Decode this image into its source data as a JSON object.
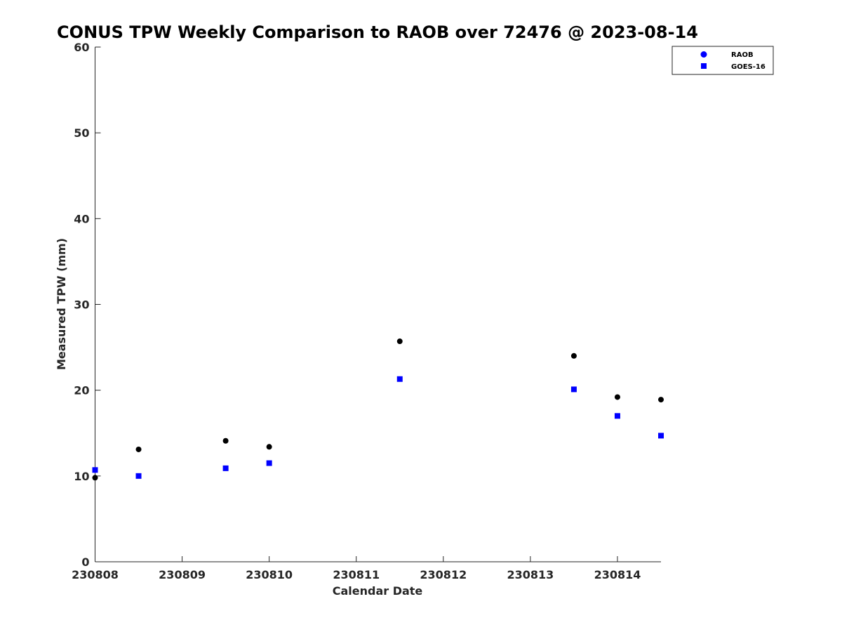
{
  "chart_data": {
    "type": "scatter",
    "title": "CONUS TPW Weekly Comparison to RAOB over 72476 @ 2023-08-14",
    "xlabel": "Calendar Date",
    "ylabel": "Measured TPW (mm)",
    "xlim": [
      "230808",
      "230814.5"
    ],
    "ylim": [
      0,
      60
    ],
    "x_ticks": [
      "230808",
      "230809",
      "230810",
      "230811",
      "230812",
      "230813",
      "230814"
    ],
    "y_ticks": [
      0,
      10,
      20,
      30,
      40,
      50,
      60
    ],
    "grid": false,
    "legend_position": "top-right",
    "series": [
      {
        "name": "RAOB",
        "marker": "circle",
        "legend_color": "#0000ff",
        "color": "#000000",
        "x": [
          "2023-08-08T00:00",
          "2023-08-08T12:00",
          "2023-08-09T12:00",
          "2023-08-10T00:00",
          "2023-08-11T12:00",
          "2023-08-13T12:00",
          "2023-08-14T00:00",
          "2023-08-14T12:00"
        ],
        "values": [
          9.8,
          13.1,
          14.1,
          13.4,
          25.7,
          24.0,
          19.2,
          18.9
        ]
      },
      {
        "name": "GOES-16",
        "marker": "square",
        "legend_color": "#0000ff",
        "color": "#0000ff",
        "x": [
          "2023-08-08T00:00",
          "2023-08-08T12:00",
          "2023-08-09T12:00",
          "2023-08-10T00:00",
          "2023-08-11T12:00",
          "2023-08-13T12:00",
          "2023-08-14T00:00",
          "2023-08-14T12:00"
        ],
        "values": [
          10.7,
          10.0,
          10.9,
          11.5,
          21.3,
          20.1,
          17.0,
          14.7
        ]
      }
    ]
  }
}
